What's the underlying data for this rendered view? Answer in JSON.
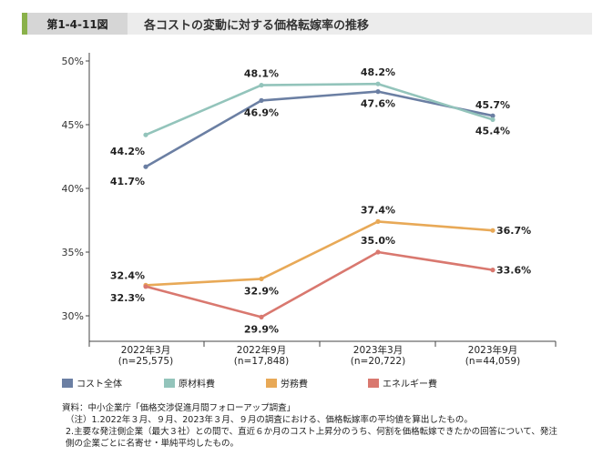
{
  "header": {
    "figure_number": "第1-4-11図",
    "title": "各コストの変動に対する価格転嫁率の推移"
  },
  "chart_data": {
    "type": "line",
    "title": "各コストの変動に対する価格転嫁率の推移",
    "categories": [
      "2022年3月",
      "2022年9月",
      "2023年3月",
      "2023年9月"
    ],
    "category_subs": [
      "(n=25,575)",
      "(n=17,848)",
      "(n=20,722)",
      "(n=44,059)"
    ],
    "yticks": [
      30,
      35,
      40,
      45,
      50
    ],
    "ytick_labels": [
      "30%",
      "35%",
      "40%",
      "45%",
      "50%"
    ],
    "ylim": [
      28,
      50.5
    ],
    "series": [
      {
        "name": "コスト全体",
        "color": "#6b7fa3",
        "values": [
          41.7,
          46.9,
          47.6,
          45.7
        ],
        "labels": [
          "41.7%",
          "46.9%",
          "47.6%",
          "45.7%"
        ]
      },
      {
        "name": "原材料費",
        "color": "#93c4bb",
        "values": [
          44.2,
          48.1,
          48.2,
          45.4
        ],
        "labels": [
          "44.2%",
          "48.1%",
          "48.2%",
          "45.4%"
        ]
      },
      {
        "name": "労務費",
        "color": "#e8a957",
        "values": [
          32.4,
          32.9,
          37.4,
          36.7
        ],
        "labels": [
          "32.4%",
          "32.9%",
          "37.4%",
          "36.7%"
        ]
      },
      {
        "name": "エネルギー費",
        "color": "#d9786f",
        "values": [
          32.3,
          29.9,
          35.0,
          33.6
        ],
        "labels": [
          "32.3%",
          "29.9%",
          "35.0%",
          "33.6%"
        ]
      }
    ]
  },
  "notes": [
    "資料：中小企業庁「価格交渉促進月間フォローアップ調査」",
    "（注）1.2022年３月、９月、2023年３月、９月の調査における、価格転嫁率の平均値を算出したもの。",
    "2.主要な発注側企業（最大３社）との間で、直近６か月のコスト上昇分のうち、何割を価格転嫁できたかの回答について、発注",
    "側の企業ごとに名寄せ・単純平均したもの。"
  ]
}
